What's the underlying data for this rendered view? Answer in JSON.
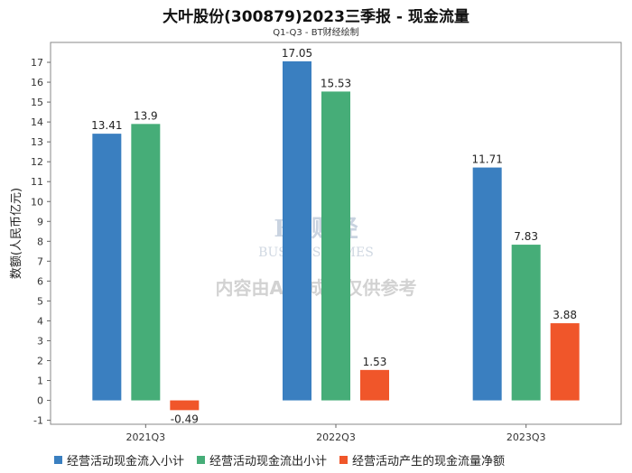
{
  "chart_data": {
    "type": "bar",
    "title": "大叶股份(300879)2023三季报 - 现金流量",
    "subtitle": "Q1-Q3 - BT财经绘制",
    "ylabel": "数额(人民币亿元)",
    "xlabel": "",
    "ylim": [
      -1.2,
      18
    ],
    "yticks": [
      -1,
      0,
      1,
      2,
      3,
      4,
      5,
      6,
      7,
      8,
      9,
      10,
      11,
      12,
      13,
      14,
      15,
      16,
      17
    ],
    "categories": [
      "2021Q3",
      "2022Q3",
      "2023Q3"
    ],
    "series": [
      {
        "name": "经营活动现金流入小计",
        "color": "#3a7fc0",
        "values": [
          13.41,
          17.05,
          11.71
        ],
        "labels": [
          "13.41",
          "17.05",
          "11.71"
        ]
      },
      {
        "name": "经营活动现金流出小计",
        "color": "#46ad78",
        "values": [
          13.9,
          15.53,
          7.83
        ],
        "labels": [
          "13.9",
          "15.53",
          "7.83"
        ]
      },
      {
        "name": "经营活动产生的现金流量净额",
        "color": "#f0562a",
        "values": [
          -0.49,
          1.53,
          3.88
        ],
        "labels": [
          "-0.49",
          "1.53",
          "3.88"
        ]
      }
    ],
    "legend_position": "bottom",
    "grid": false
  },
  "watermark": {
    "brand": "BT财经",
    "brand_en": "BUSINESSTIMES",
    "notice": "内容由AI生成，仅供参考"
  }
}
